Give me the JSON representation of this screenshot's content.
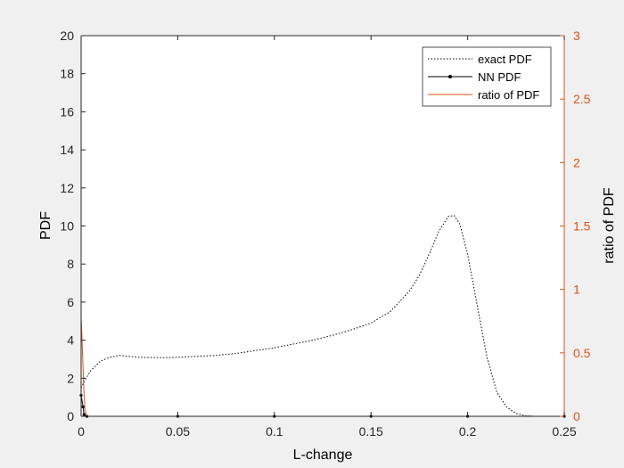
{
  "chart_data": {
    "type": "line",
    "xlabel": "L-change",
    "ylabel_left": "PDF",
    "ylabel_right": "ratio of PDF",
    "xlim": [
      0,
      0.25
    ],
    "ylim_left": [
      0,
      20
    ],
    "ylim_right": [
      0,
      3
    ],
    "x_ticks": [
      "0",
      "0.05",
      "0.1",
      "0.15",
      "0.2",
      "0.25"
    ],
    "y_ticks_left": [
      "0",
      "2",
      "4",
      "6",
      "8",
      "10",
      "12",
      "14",
      "16",
      "18",
      "20"
    ],
    "y_ticks_right": [
      "0",
      "0.5",
      "1",
      "1.5",
      "2",
      "2.5",
      "3"
    ],
    "grid": false,
    "legend_position": "top-right",
    "colors": {
      "axis_left": "#262626",
      "axis_right": "#d95319",
      "exact": "#000000",
      "nn": "#000000",
      "ratio": "#d95319"
    },
    "series": [
      {
        "name": "exact PDF",
        "axis": "left",
        "style": "dotted",
        "x": [
          0,
          0.002,
          0.005,
          0.01,
          0.015,
          0.02,
          0.025,
          0.03,
          0.04,
          0.05,
          0.06,
          0.07,
          0.08,
          0.09,
          0.1,
          0.11,
          0.12,
          0.13,
          0.14,
          0.15,
          0.16,
          0.17,
          0.175,
          0.18,
          0.185,
          0.19,
          0.193,
          0.196,
          0.2,
          0.205,
          0.21,
          0.215,
          0.22,
          0.225,
          0.23,
          0.235,
          0.25
        ],
        "y": [
          1.5,
          1.9,
          2.4,
          2.9,
          3.1,
          3.2,
          3.15,
          3.1,
          3.08,
          3.1,
          3.15,
          3.2,
          3.3,
          3.45,
          3.6,
          3.8,
          4.0,
          4.25,
          4.55,
          4.9,
          5.5,
          6.6,
          7.4,
          8.5,
          9.7,
          10.5,
          10.55,
          10.1,
          8.5,
          5.8,
          3.1,
          1.3,
          0.5,
          0.15,
          0.03,
          0,
          0
        ]
      },
      {
        "name": "NN PDF",
        "axis": "left",
        "style": "solid-marker",
        "x": [
          0,
          0.001,
          0.0015,
          0.003,
          0.05,
          0.1,
          0.15,
          0.2,
          0.25
        ],
        "y": [
          1.1,
          0.5,
          0.1,
          0,
          0,
          0,
          0,
          0,
          0
        ]
      },
      {
        "name": "ratio of PDF",
        "axis": "right",
        "style": "solid",
        "x": [
          0,
          0.0005,
          0.001,
          0.0015,
          0.002,
          0.003,
          0.05,
          0.1,
          0.15,
          0.2,
          0.25
        ],
        "y": [
          0.78,
          0.6,
          0.38,
          0.18,
          0.05,
          0,
          0,
          0,
          0,
          0,
          0
        ]
      }
    ]
  }
}
